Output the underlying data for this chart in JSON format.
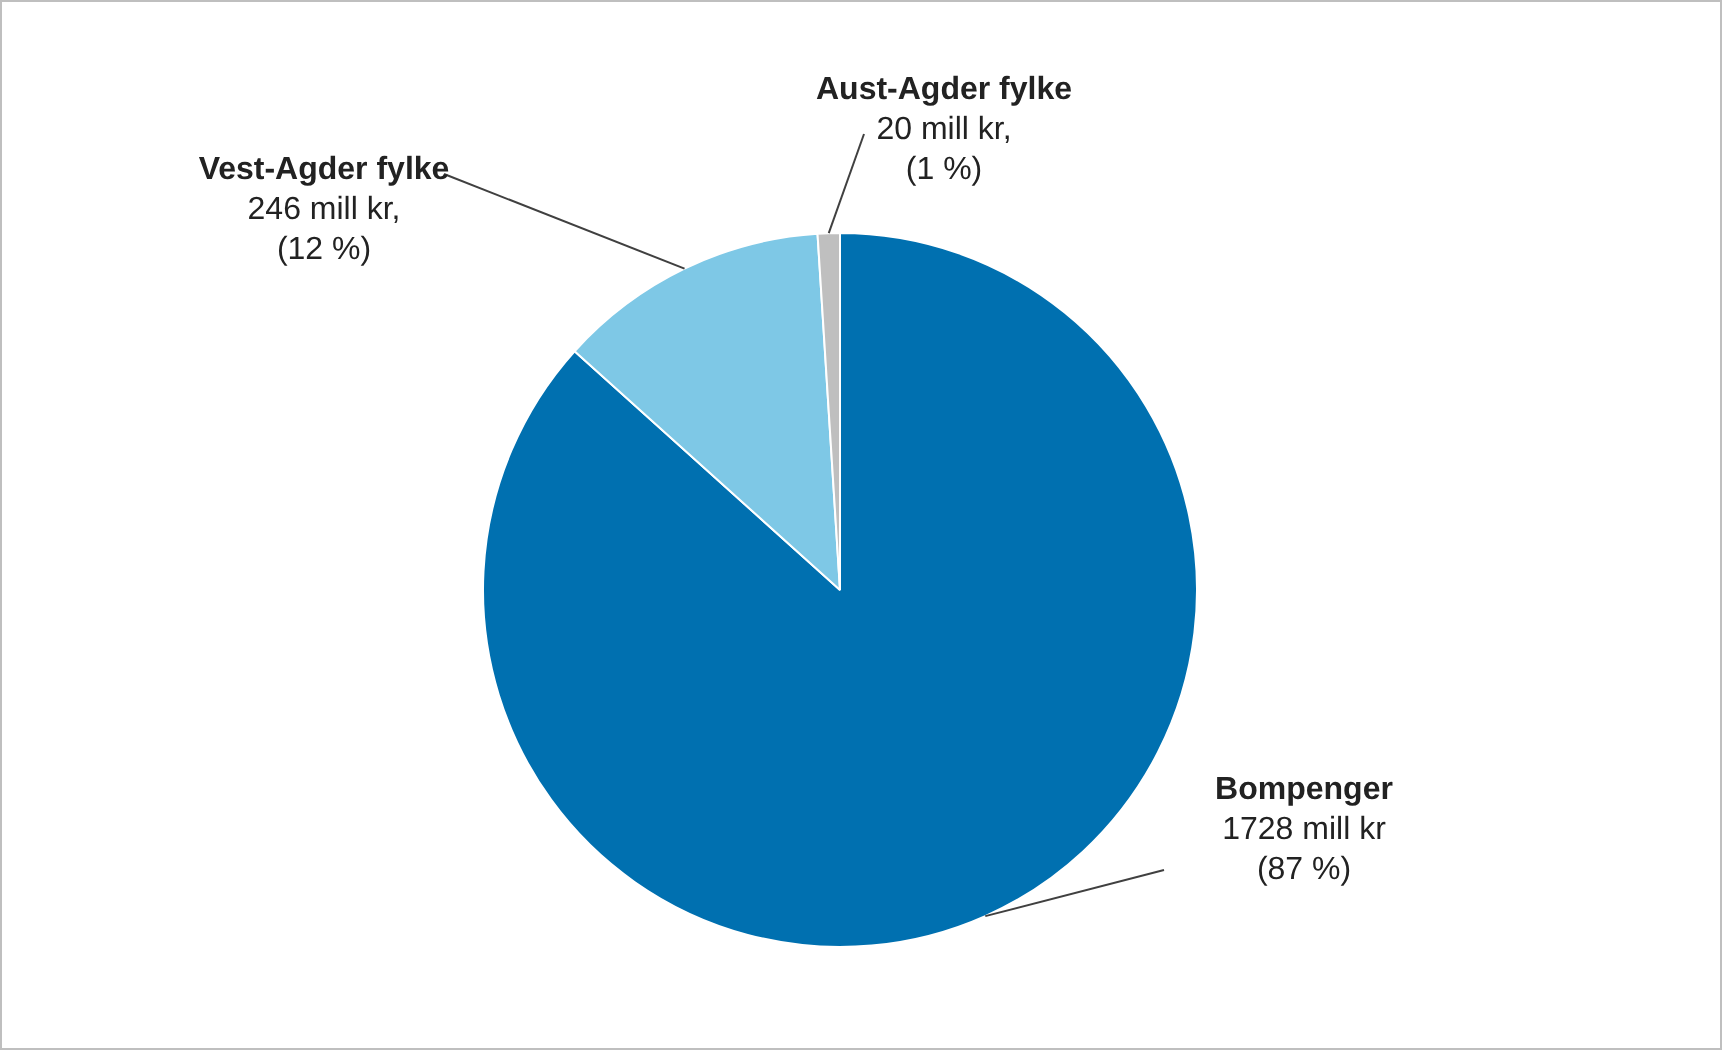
{
  "chart_data": {
    "type": "pie",
    "categories": [
      "Bompenger",
      "Vest-Agder fylke",
      "Aust-Agder fylke"
    ],
    "values": [
      1728,
      246,
      20
    ],
    "colors": [
      "#0070b0",
      "#7ec8e6",
      "#bfbfbf"
    ],
    "value_labels": [
      "1728 mill kr\n(87 %)",
      "246 mill kr,\n(12 %)",
      "20 mill kr,\n(1 %)"
    ],
    "legend": false
  }
}
